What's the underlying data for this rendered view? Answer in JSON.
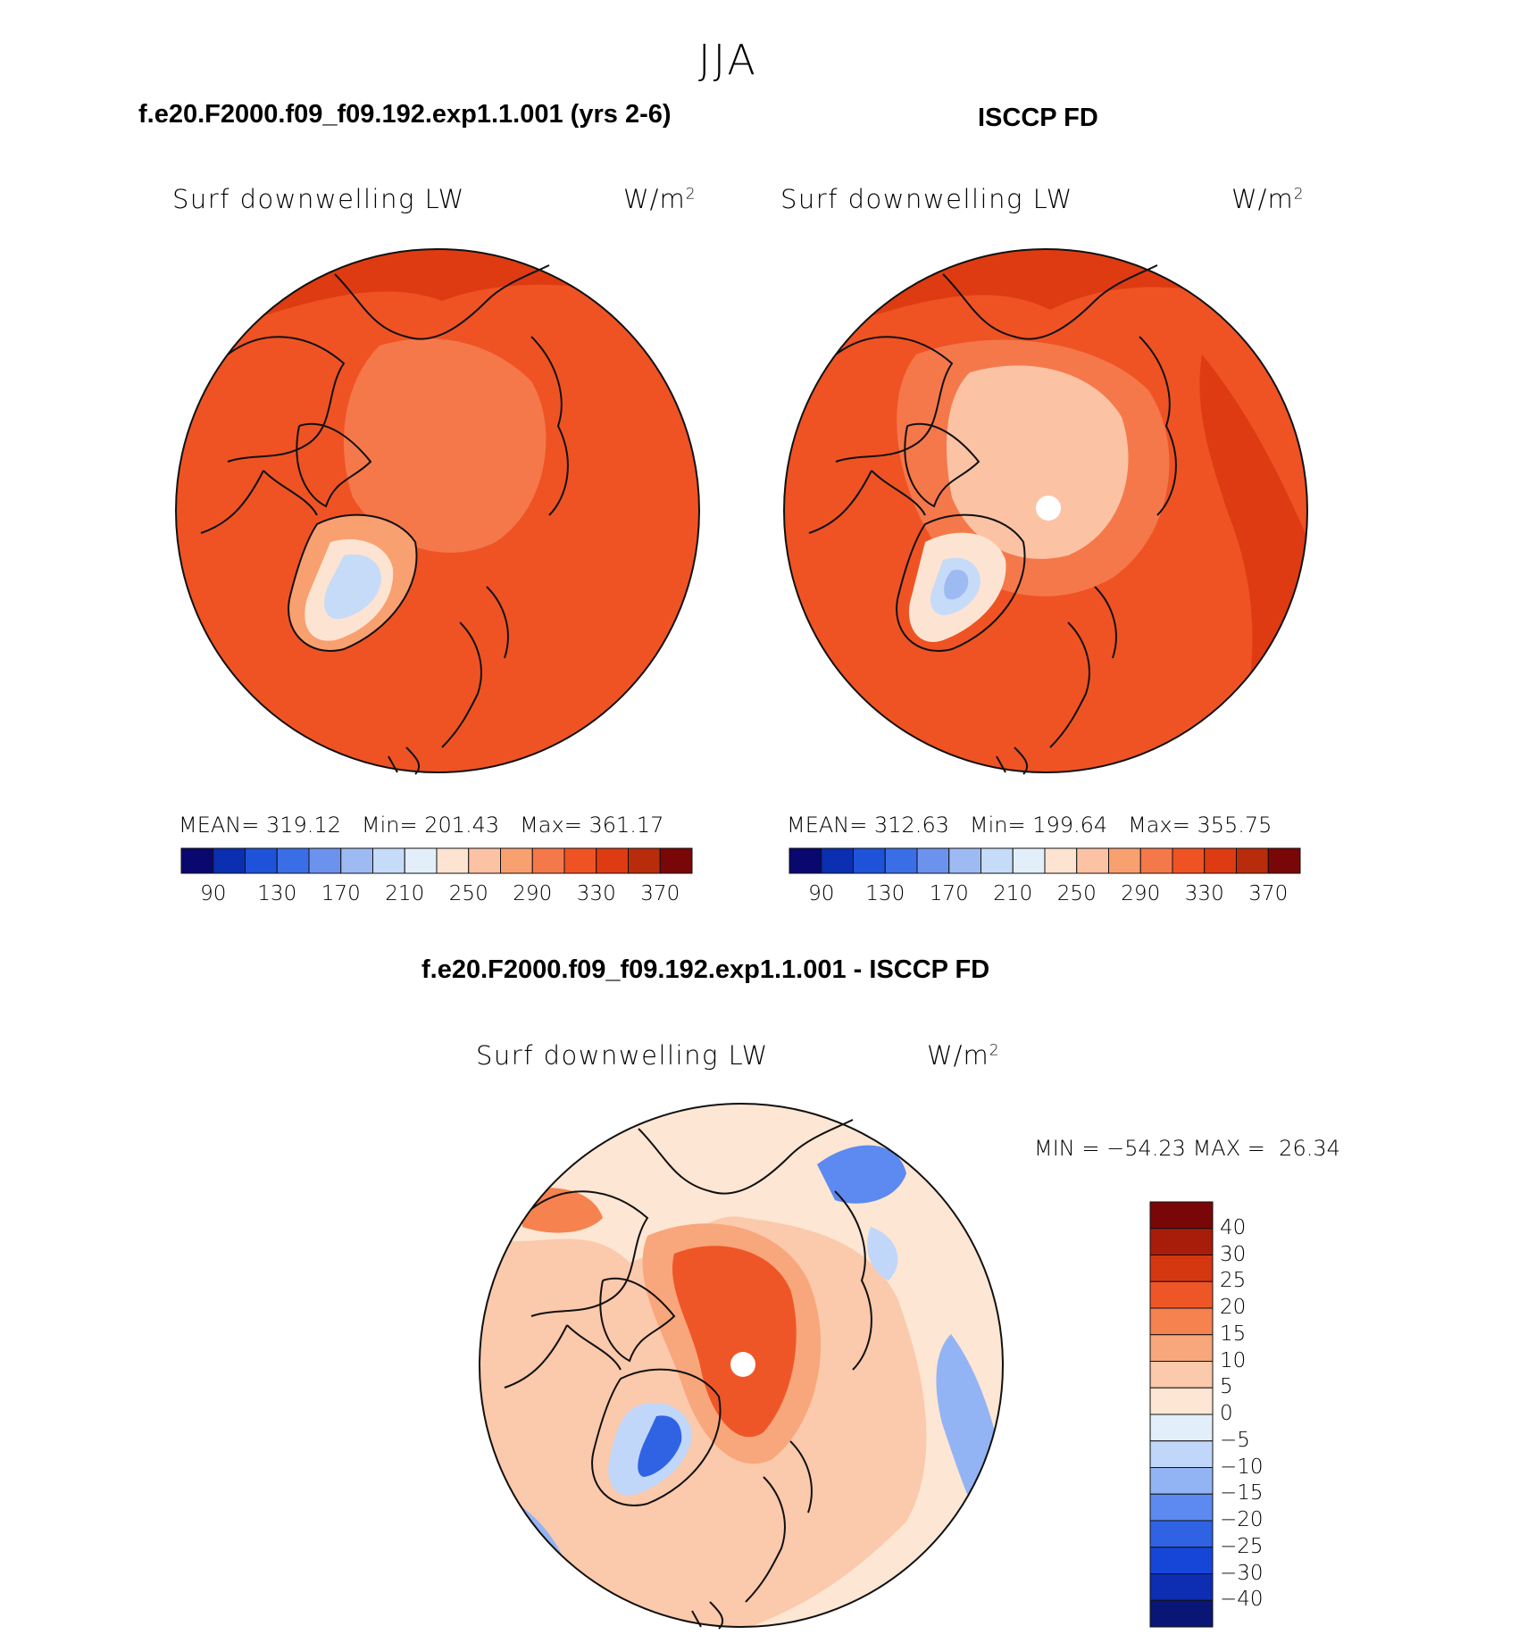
{
  "figure": {
    "season": "JJA",
    "variable": "Surf downwelling LW",
    "units_base": "W/m",
    "units_exp": "2"
  },
  "colors": {
    "abs_scale": [
      "#08086e",
      "#0a2fb0",
      "#1e52d8",
      "#3a6ee6",
      "#6b93ee",
      "#9dbaf3",
      "#c6dbf8",
      "#e3eefb",
      "#fde4d2",
      "#fbc3a4",
      "#f8a070",
      "#f5784b",
      "#ef5324",
      "#de3b12",
      "#b82c0c",
      "#7a0707"
    ],
    "diff_scale": [
      "#0a1675",
      "#0d2db2",
      "#1646d8",
      "#2f63e4",
      "#5c8af0",
      "#93b4f4",
      "#c1d7f9",
      "#e3eefb",
      "#fde6d3",
      "#fbc9ab",
      "#f8a67b",
      "#f6824f",
      "#ef5627",
      "#d53811",
      "#a81c0a",
      "#7a0707"
    ]
  },
  "chart_data": [
    {
      "type": "heatmap",
      "title": "f.e20.F2000.f09_f09.192.exp1.1.001 (yrs 2-6)",
      "subtitle": "Surf downwelling LW",
      "units": "W/m2",
      "projection": "polar stereographic (Northern Hemisphere)",
      "stats": {
        "mean_label": "MEAN=",
        "mean": "319.12",
        "min_label": "Min=",
        "min": "201.43",
        "max_label": "Max=",
        "max": "361.17"
      },
      "colorbar_ticks": [
        "90",
        "130",
        "170",
        "210",
        "250",
        "290",
        "330",
        "370"
      ],
      "colorbar_levels": 16
    },
    {
      "type": "heatmap",
      "title": "ISCCP FD",
      "subtitle": "Surf downwelling LW",
      "units": "W/m2",
      "projection": "polar stereographic (Northern Hemisphere)",
      "stats": {
        "mean_label": "MEAN=",
        "mean": "312.63",
        "min_label": "Min=",
        "min": "199.64",
        "max_label": "Max=",
        "max": "355.75"
      },
      "colorbar_ticks": [
        "90",
        "130",
        "170",
        "210",
        "250",
        "290",
        "330",
        "370"
      ],
      "colorbar_levels": 16
    },
    {
      "type": "heatmap",
      "title": "f.e20.F2000.f09_f09.192.exp1.1.001 - ISCCP FD",
      "subtitle": "Surf downwelling LW",
      "units": "W/m2",
      "projection": "polar stereographic (Northern Hemisphere)",
      "stats": {
        "min_label": "MIN =",
        "min": "−54.23",
        "max_label": "MAX =",
        "max": "26.34"
      },
      "colorbar_ticks": [
        "40",
        "30",
        "25",
        "20",
        "15",
        "10",
        "5",
        "0",
        "−5",
        "−10",
        "−15",
        "−20",
        "−25",
        "−30",
        "−40"
      ],
      "colorbar_levels": 16
    }
  ]
}
